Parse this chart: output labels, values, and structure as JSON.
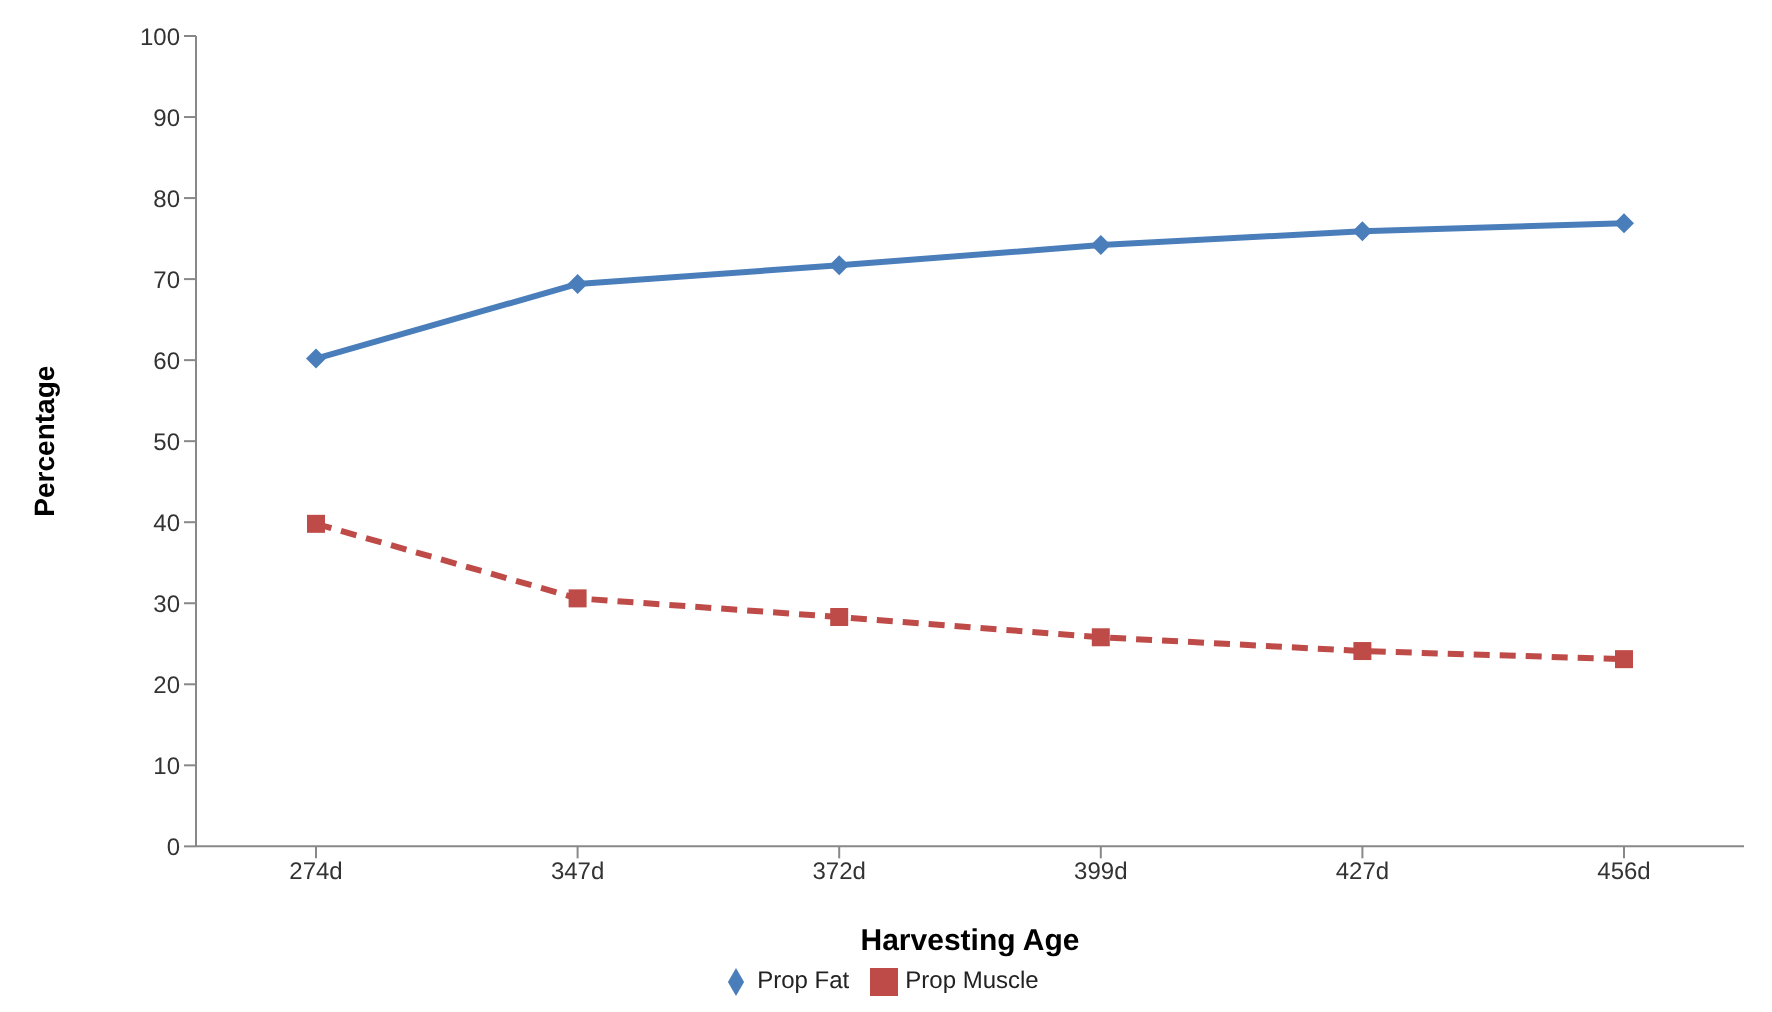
{
  "chart_data": {
    "type": "line",
    "xlabel": "Harvesting Age",
    "ylabel": "Percentage",
    "categories": [
      "274d",
      "347d",
      "372d",
      "399d",
      "427d",
      "456d"
    ],
    "series": [
      {
        "name": "Prop Fat",
        "color": "#4a7ebb",
        "values": [
          60.2,
          69.4,
          71.7,
          74.2,
          75.9,
          76.9
        ],
        "marker": "diamond",
        "line_style": "solid"
      },
      {
        "name": "Prop Muscle",
        "color": "#be4b48",
        "values": [
          39.8,
          30.6,
          28.3,
          25.8,
          24.1,
          23.1
        ],
        "marker": "square",
        "line_style": "dashed"
      }
    ],
    "ylim": [
      0,
      100
    ],
    "yticks": [
      0,
      10,
      20,
      30,
      40,
      50,
      60,
      70,
      80,
      90,
      100
    ],
    "grid": false,
    "legend": "bottom"
  }
}
